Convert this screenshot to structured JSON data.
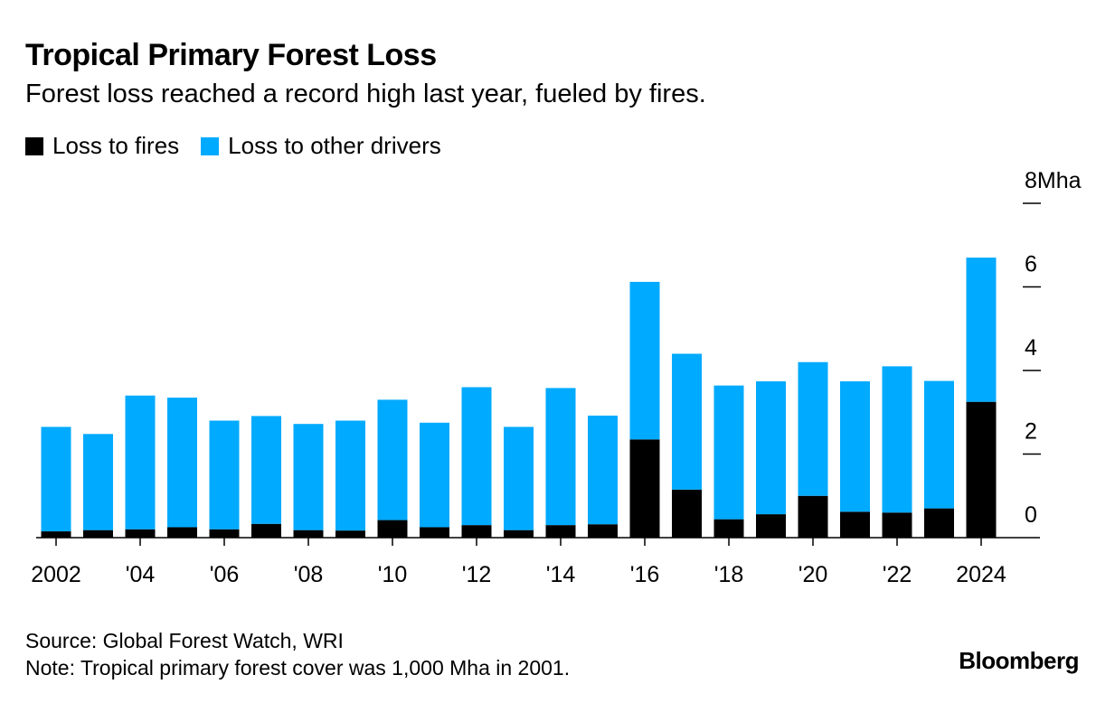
{
  "header": {
    "title": "Tropical Primary Forest Loss",
    "subtitle": "Forest loss reached a record high last year, fueled by fires."
  },
  "legend": [
    {
      "label": "Loss to fires",
      "color": "#000000"
    },
    {
      "label": "Loss to other drivers",
      "color": "#00aaff"
    }
  ],
  "footer": {
    "source": "Source: Global Forest Watch, WRI",
    "note": "Note: Tropical primary forest cover was 1,000 Mha in 2001.",
    "brand": "Bloomberg"
  },
  "chart_data": {
    "type": "bar",
    "stacked": true,
    "categories": [
      "2002",
      "2003",
      "2004",
      "2005",
      "2006",
      "2007",
      "2008",
      "2009",
      "2010",
      "2011",
      "2012",
      "2013",
      "2014",
      "2015",
      "2016",
      "2017",
      "2018",
      "2019",
      "2020",
      "2021",
      "2022",
      "2023",
      "2024"
    ],
    "x_tick_labels": [
      {
        "year": "2002",
        "label": "2002"
      },
      {
        "year": "2004",
        "label": "'04"
      },
      {
        "year": "2006",
        "label": "'06"
      },
      {
        "year": "2008",
        "label": "'08"
      },
      {
        "year": "2010",
        "label": "'10"
      },
      {
        "year": "2012",
        "label": "'12"
      },
      {
        "year": "2014",
        "label": "'14"
      },
      {
        "year": "2016",
        "label": "'16"
      },
      {
        "year": "2018",
        "label": "'18"
      },
      {
        "year": "2020",
        "label": "'20"
      },
      {
        "year": "2022",
        "label": "'22"
      },
      {
        "year": "2024",
        "label": "2024"
      }
    ],
    "series": [
      {
        "name": "Loss to fires",
        "color": "#000000",
        "values": [
          0.15,
          0.18,
          0.2,
          0.25,
          0.2,
          0.33,
          0.18,
          0.17,
          0.42,
          0.25,
          0.3,
          0.18,
          0.3,
          0.32,
          2.35,
          1.15,
          0.44,
          0.56,
          1.0,
          0.62,
          0.6,
          0.7,
          3.25
        ]
      },
      {
        "name": "Loss to other drivers",
        "color": "#00aaff",
        "values": [
          2.5,
          2.3,
          3.2,
          3.1,
          2.6,
          2.58,
          2.54,
          2.63,
          2.88,
          2.5,
          3.3,
          2.47,
          3.28,
          2.6,
          3.77,
          3.25,
          3.2,
          3.18,
          3.2,
          3.12,
          3.5,
          3.05,
          3.45
        ]
      }
    ],
    "y_ticks": [
      {
        "value": 0,
        "label": "0"
      },
      {
        "value": 2,
        "label": "2"
      },
      {
        "value": 4,
        "label": "4"
      },
      {
        "value": 6,
        "label": "6"
      },
      {
        "value": 8,
        "label": "8Mha"
      }
    ],
    "ylim": [
      0,
      8
    ],
    "y_axis_side": "right",
    "legend_position": "top-left",
    "grid": false
  }
}
